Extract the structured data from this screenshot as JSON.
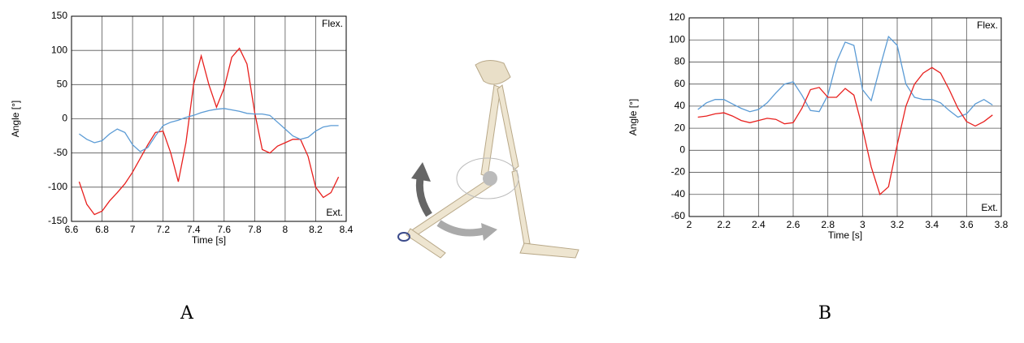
{
  "chart_data": [
    {
      "type": "line",
      "panel_label": "A",
      "xlabel": "Time [s]",
      "ylabel": "Angle [°]",
      "annotations": [
        "Flex.",
        "Ext."
      ],
      "xlim": [
        6.6,
        8.4
      ],
      "xticks": [
        6.6,
        6.8,
        7,
        7.2,
        7.4,
        7.6,
        7.8,
        8,
        8.2,
        8.4
      ],
      "ylim": [
        -150,
        150
      ],
      "yticks": [
        -150,
        -100,
        -50,
        0,
        50,
        100,
        150
      ],
      "grid": true,
      "x": [
        6.65,
        6.7,
        6.75,
        6.8,
        6.85,
        6.9,
        6.95,
        7.0,
        7.05,
        7.1,
        7.15,
        7.2,
        7.25,
        7.3,
        7.35,
        7.4,
        7.45,
        7.5,
        7.55,
        7.6,
        7.65,
        7.7,
        7.75,
        7.8,
        7.85,
        7.9,
        7.95,
        8.0,
        8.05,
        8.1,
        8.15,
        8.2,
        8.25,
        8.3,
        8.35
      ],
      "series": [
        {
          "color": "#e8201e",
          "values": [
            -92,
            -125,
            -140,
            -135,
            -120,
            -108,
            -95,
            -78,
            -58,
            -38,
            -20,
            -18,
            -50,
            -92,
            -35,
            50,
            92,
            50,
            17,
            45,
            90,
            103,
            80,
            10,
            -45,
            -50,
            -40,
            -35,
            -30,
            -30,
            -55,
            -100,
            -115,
            -108,
            -85
          ]
        },
        {
          "color": "#5b9bd5",
          "values": [
            -22,
            -30,
            -35,
            -32,
            -22,
            -15,
            -20,
            -38,
            -48,
            -42,
            -25,
            -10,
            -5,
            -2,
            2,
            5,
            9,
            12,
            14,
            15,
            13,
            11,
            8,
            7,
            7,
            5,
            -5,
            -15,
            -25,
            -30,
            -27,
            -18,
            -12,
            -10,
            -10
          ]
        }
      ]
    },
    {
      "type": "line",
      "panel_label": "B",
      "xlabel": "Time [s]",
      "ylabel": "Angle [°]",
      "annotations": [
        "Flex.",
        "Ext."
      ],
      "xlim": [
        2,
        3.8
      ],
      "xticks": [
        2,
        2.2,
        2.4,
        2.6,
        2.8,
        3,
        3.2,
        3.4,
        3.6,
        3.8
      ],
      "ylim": [
        -60,
        120
      ],
      "yticks": [
        -60,
        -40,
        -20,
        0,
        20,
        40,
        60,
        80,
        100,
        120
      ],
      "grid": true,
      "x": [
        2.05,
        2.1,
        2.15,
        2.2,
        2.25,
        2.3,
        2.35,
        2.4,
        2.45,
        2.5,
        2.55,
        2.6,
        2.65,
        2.7,
        2.75,
        2.8,
        2.85,
        2.9,
        2.95,
        3.0,
        3.05,
        3.1,
        3.15,
        3.2,
        3.25,
        3.3,
        3.35,
        3.4,
        3.45,
        3.5,
        3.55,
        3.6,
        3.65,
        3.7,
        3.75
      ],
      "series": [
        {
          "color": "#5b9bd5",
          "values": [
            37,
            43,
            46,
            46,
            42,
            38,
            35,
            37,
            43,
            52,
            60,
            62,
            50,
            36,
            35,
            50,
            80,
            98,
            95,
            55,
            45,
            75,
            103,
            95,
            60,
            48,
            46,
            46,
            43,
            36,
            30,
            33,
            42,
            46,
            41
          ]
        },
        {
          "color": "#e8201e",
          "values": [
            30,
            31,
            33,
            34,
            31,
            27,
            25,
            27,
            29,
            28,
            24,
            25,
            38,
            55,
            57,
            48,
            48,
            56,
            50,
            20,
            -15,
            -40,
            -33,
            5,
            40,
            60,
            70,
            75,
            70,
            55,
            38,
            26,
            22,
            26,
            32
          ]
        }
      ]
    }
  ]
}
